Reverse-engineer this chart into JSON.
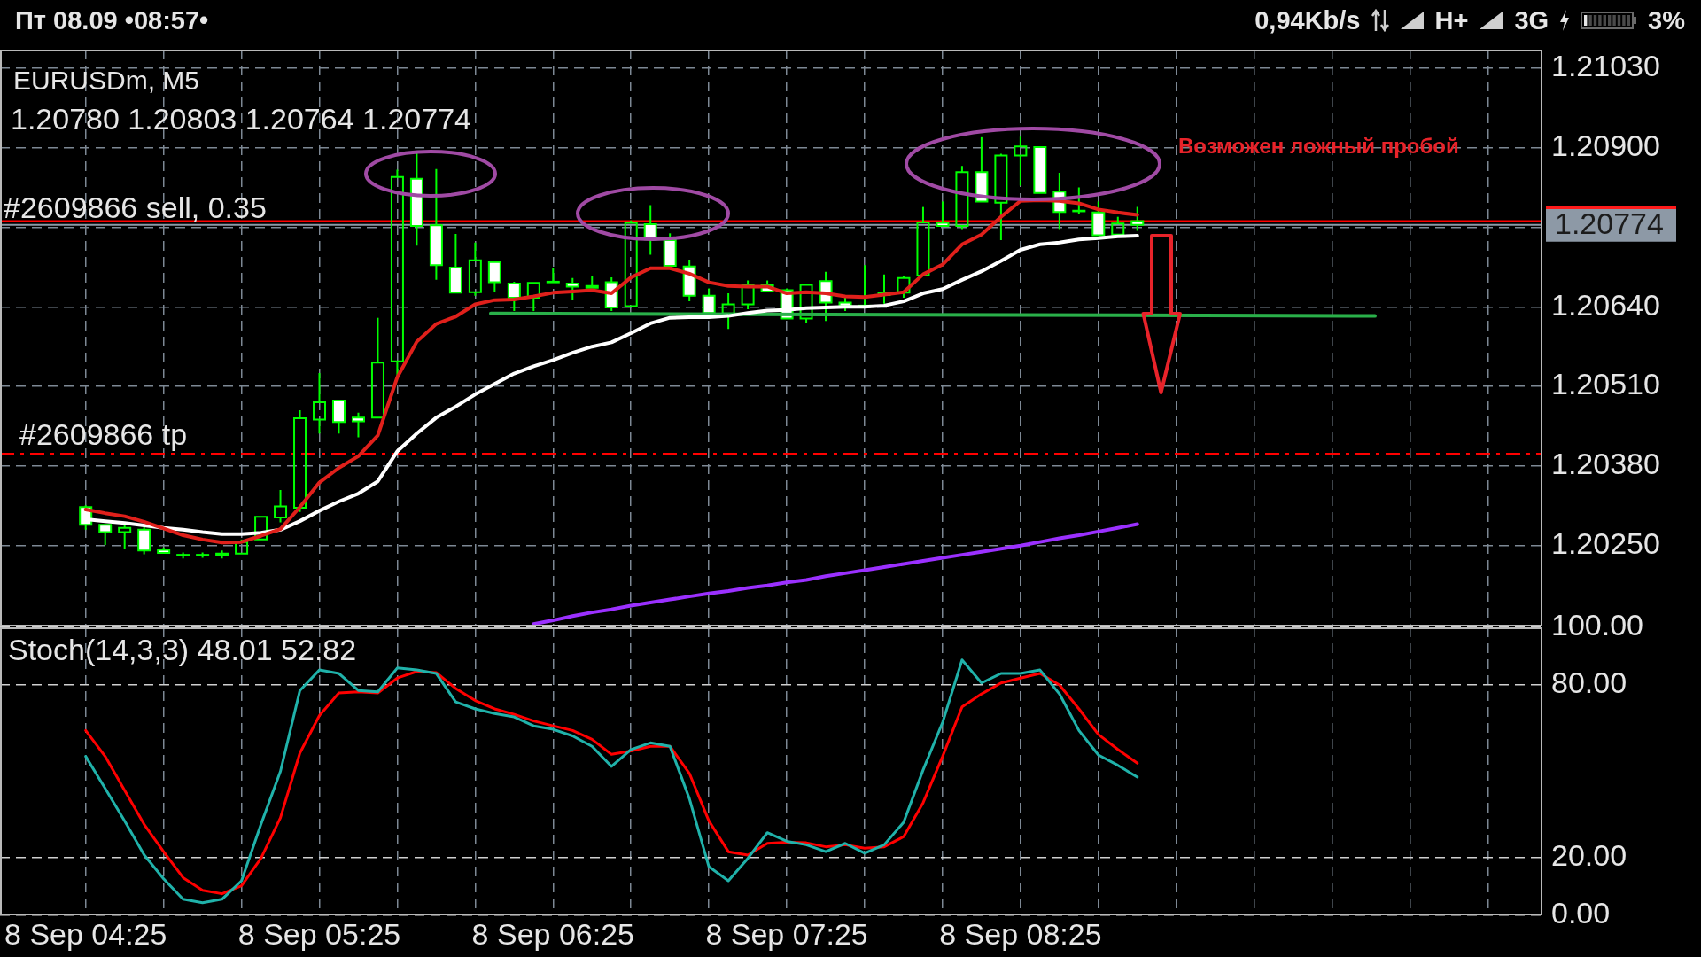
{
  "chart_data": [
    {
      "type": "candlestick",
      "title": "EURUSDm, M5",
      "subtitle": "1.20780 1.20803 1.20764 1.20774",
      "x": [
        "--09-08T04:25",
        "--09-08T04:30",
        "--09-08T04:35",
        "--09-08T04:40",
        "--09-08T04:45",
        "--09-08T04:50",
        "--09-08T04:55",
        "--09-08T05:00",
        "--09-08T05:05",
        "--09-08T05:10",
        "--09-08T05:15",
        "--09-08T05:20",
        "--09-08T05:25",
        "--09-08T05:30",
        "--09-08T05:35",
        "--09-08T05:40",
        "--09-08T05:45",
        "--09-08T05:50",
        "--09-08T05:55",
        "--09-08T06:00",
        "--09-08T06:05",
        "--09-08T06:10",
        "--09-08T06:15",
        "--09-08T06:20",
        "--09-08T06:25",
        "--09-08T06:30",
        "--09-08T06:35",
        "--09-08T06:40",
        "--09-08T06:45",
        "--09-08T06:50",
        "--09-08T06:55",
        "--09-08T07:00",
        "--09-08T07:05",
        "--09-08T07:10",
        "--09-08T07:15",
        "--09-08T07:20",
        "--09-08T07:25",
        "--09-08T07:30",
        "--09-08T07:35",
        "--09-08T07:40",
        "--09-08T07:45",
        "--09-08T07:50",
        "--09-08T07:55",
        "--09-08T08:00",
        "--09-08T08:05",
        "--09-08T08:10",
        "--09-08T08:15",
        "--09-08T08:20",
        "--09-08T08:25",
        "--09-08T08:30",
        "--09-08T08:35",
        "--09-08T08:40",
        "--09-08T08:45",
        "--09-08T08:50",
        "--09-08T08:55"
      ],
      "ohlc": [
        [
          1.20313,
          1.20316,
          1.20276,
          1.20284
        ],
        [
          1.20284,
          1.20286,
          1.20251,
          1.20272
        ],
        [
          1.20272,
          1.20283,
          1.20245,
          1.20279
        ],
        [
          1.20276,
          1.2028,
          1.20236,
          1.20242
        ],
        [
          1.20243,
          1.20247,
          1.20237,
          1.20238
        ],
        [
          1.20235,
          1.20239,
          1.20229,
          1.20234
        ],
        [
          1.20234,
          1.20239,
          1.2023,
          1.20235
        ],
        [
          1.20234,
          1.20242,
          1.20229,
          1.20237
        ],
        [
          1.20237,
          1.2026,
          1.20237,
          1.20256
        ],
        [
          1.2026,
          1.20298,
          1.2026,
          1.20297
        ],
        [
          1.20296,
          1.20341,
          1.20288,
          1.20314
        ],
        [
          1.20312,
          1.20471,
          1.20305,
          1.20458
        ],
        [
          1.20456,
          1.20532,
          1.20433,
          1.20484
        ],
        [
          1.20487,
          1.20488,
          1.20433,
          1.20452
        ],
        [
          1.20459,
          1.20467,
          1.20427,
          1.20453
        ],
        [
          1.20459,
          1.20622,
          1.20459,
          1.20549
        ],
        [
          1.20551,
          1.20864,
          1.20525,
          1.20852
        ],
        [
          1.20849,
          1.20891,
          1.2074,
          1.20772
        ],
        [
          1.20773,
          1.20865,
          1.20684,
          1.20708
        ],
        [
          1.20704,
          1.20759,
          1.20662,
          1.20663
        ],
        [
          1.20664,
          1.20745,
          1.20658,
          1.20716
        ],
        [
          1.20713,
          1.20714,
          1.20665,
          1.2068
        ],
        [
          1.20678,
          1.20681,
          1.20633,
          1.20655
        ],
        [
          1.20655,
          1.2068,
          1.20633,
          1.20679
        ],
        [
          1.2068,
          1.20704,
          1.20679,
          1.20681
        ],
        [
          1.20678,
          1.20687,
          1.20651,
          1.20673
        ],
        [
          1.20671,
          1.2069,
          1.20671,
          1.20674
        ],
        [
          1.2068,
          1.20688,
          1.20633,
          1.20639
        ],
        [
          1.20641,
          1.20781,
          1.2064,
          1.20777
        ],
        [
          1.20775,
          1.20806,
          1.20725,
          1.2075
        ],
        [
          1.20749,
          1.2076,
          1.20705,
          1.20707
        ],
        [
          1.20706,
          1.20717,
          1.20649,
          1.20658
        ],
        [
          1.20658,
          1.2067,
          1.20629,
          1.2063
        ],
        [
          1.20629,
          1.20662,
          1.20604,
          1.20644
        ],
        [
          1.20644,
          1.20683,
          1.20636,
          1.20676
        ],
        [
          1.20675,
          1.20683,
          1.20664,
          1.20665
        ],
        [
          1.20667,
          1.2067,
          1.20621,
          1.20621
        ],
        [
          1.20621,
          1.20676,
          1.20613,
          1.20676
        ],
        [
          1.20682,
          1.20697,
          1.20617,
          1.20647
        ],
        [
          1.20647,
          1.20655,
          1.20633,
          1.20641
        ],
        [
          1.20641,
          1.20708,
          1.20638,
          1.20642
        ],
        [
          1.20659,
          1.20693,
          1.20645,
          1.20663
        ],
        [
          1.20663,
          1.2069,
          1.20655,
          1.20687
        ],
        [
          1.20691,
          1.20803,
          1.20691,
          1.20778
        ],
        [
          1.20777,
          1.20812,
          1.20771,
          1.20772
        ],
        [
          1.20772,
          1.2087,
          1.20767,
          1.2086
        ],
        [
          1.2086,
          1.20917,
          1.20812,
          1.20812
        ],
        [
          1.2081,
          1.2089,
          1.20749,
          1.20887
        ],
        [
          1.20887,
          1.20918,
          1.20838,
          1.20902
        ],
        [
          1.20901,
          1.20902,
          1.20824,
          1.20826
        ],
        [
          1.20828,
          1.20859,
          1.20767,
          1.20795
        ],
        [
          1.20797,
          1.20835,
          1.20791,
          1.20796
        ],
        [
          1.20794,
          1.20812,
          1.20757,
          1.20757
        ],
        [
          1.20758,
          1.20787,
          1.20758,
          1.20776
        ],
        [
          1.2078,
          1.20803,
          1.20764,
          1.20774
        ]
      ],
      "color": "#00ff00",
      "colors": [
        "#ffffff",
        "#ffffff",
        "#00ff00",
        "#ffffff",
        "#ffffff",
        "#ffffff",
        "#00ff00",
        "#00ff00",
        "#00ff00",
        "#00ff00",
        "#00ff00",
        "#00ff00",
        "#00ff00",
        "#ffffff",
        "#ffffff",
        "#00ff00",
        "#00ff00",
        "#ffffff",
        "#ffffff",
        "#ffffff",
        "#00ff00",
        "#ffffff",
        "#ffffff",
        "#00ff00",
        "#00ff00",
        "#ffffff",
        "#00ff00",
        "#ffffff",
        "#00ff00",
        "#ffffff",
        "#ffffff",
        "#ffffff",
        "#ffffff",
        "#00ff00",
        "#00ff00",
        "#ffffff",
        "#ffffff",
        "#00ff00",
        "#ffffff",
        "#ffffff",
        "#00ff00",
        "#00ff00",
        "#00ff00",
        "#00ff00",
        "#ffffff",
        "#00ff00",
        "#ffffff",
        "#00ff00",
        "#00ff00",
        "#ffffff",
        "#ffffff",
        "#ffffff",
        "#ffffff",
        "#00ff00",
        "#ffffff"
      ],
      "series": [
        {
          "type": "line",
          "color": "#e0201b",
          "values": [
            1.20309,
            1.20303,
            1.20298,
            1.20289,
            1.20278,
            1.20267,
            1.2026,
            1.20255,
            1.20256,
            1.20266,
            1.20277,
            1.20313,
            1.20353,
            1.20377,
            1.20396,
            1.2043,
            1.20525,
            1.20583,
            1.20612,
            1.20624,
            1.20644,
            1.20651,
            1.20652,
            1.20657,
            1.20663,
            1.20665,
            1.20667,
            1.20662,
            1.20688,
            1.20703,
            1.20703,
            1.20694,
            1.2068,
            1.20674,
            1.20673,
            1.20673,
            1.20662,
            1.20664,
            1.20662,
            1.20657,
            1.20656,
            1.2066,
            1.20664,
            1.20693,
            1.20709,
            1.20742,
            1.20758,
            1.20787,
            1.20813,
            1.20814,
            1.20813,
            1.20809,
            1.20799,
            1.20794,
            1.2079
          ]
        },
        {
          "type": "line",
          "color": "#ffffff",
          "values": [
            1.20293,
            1.2029,
            1.20287,
            1.20283,
            1.20279,
            1.20276,
            1.20272,
            1.20269,
            1.20269,
            1.20271,
            1.20276,
            1.2029,
            1.20307,
            1.20322,
            1.20335,
            1.20355,
            1.20404,
            1.20433,
            1.20459,
            1.20477,
            1.20497,
            1.20514,
            1.20531,
            1.20543,
            1.20553,
            1.20565,
            1.20575,
            1.20582,
            1.20597,
            1.20613,
            1.20622,
            1.20623,
            1.20623,
            1.20625,
            1.2063,
            1.20634,
            1.20635,
            1.20638,
            1.20639,
            1.2064,
            1.2064,
            1.20642,
            1.20649,
            1.20662,
            1.20669,
            1.20684,
            1.20698,
            1.20715,
            1.20733,
            1.20742,
            1.20745,
            1.2075,
            1.20752,
            1.20755,
            1.20756
          ]
        },
        {
          "type": "line",
          "color": "#9b30ff",
          "values": [
            null,
            null,
            null,
            null,
            null,
            null,
            null,
            null,
            null,
            null,
            null,
            null,
            null,
            null,
            null,
            null,
            null,
            null,
            null,
            null,
            null,
            null,
            null,
            1.20122,
            1.20128,
            1.20135,
            1.20141,
            1.20146,
            1.20152,
            1.20157,
            1.20162,
            1.20167,
            1.20172,
            1.20176,
            1.20181,
            1.20185,
            1.2019,
            1.20194,
            1.202,
            1.20205,
            1.2021,
            1.20215,
            1.2022,
            1.20225,
            1.2023,
            1.20235,
            1.2024,
            1.20245,
            1.2025,
            1.20256,
            1.20262,
            1.20267,
            1.20273,
            1.20279,
            1.20285
          ]
        },
        {
          "type": "line",
          "color": "#2ab04a",
          "x": [
            "--09-08T06:09",
            "--09-08T09:56"
          ],
          "values": [
            1.20629,
            1.20625
          ]
        }
      ],
      "xlim": [
        "--09-08T04:03",
        "--09-08T10:39"
      ],
      "xticks": [
        {
          "value": "--09-08T04:25",
          "label": null
        },
        {
          "value": "--09-08T04:45",
          "label": null
        },
        {
          "value": "--09-08T05:05",
          "label": null
        },
        {
          "value": "--09-08T05:25",
          "label": null
        },
        {
          "value": "--09-08T05:45",
          "label": null
        },
        {
          "value": "--09-08T06:05",
          "label": null
        },
        {
          "value": "--09-08T06:25",
          "label": null
        },
        {
          "value": "--09-08T06:45",
          "label": null
        },
        {
          "value": "--09-08T07:05",
          "label": null
        },
        {
          "value": "--09-08T07:25",
          "label": null
        },
        {
          "value": "--09-08T07:45",
          "label": null
        },
        {
          "value": "--09-08T08:05",
          "label": null
        },
        {
          "value": "--09-08T08:25",
          "label": null
        },
        {
          "value": "--09-08T08:45",
          "label": null
        },
        {
          "value": "--09-08T09:05",
          "label": null
        },
        {
          "value": "--09-08T09:25",
          "label": null
        },
        {
          "value": "--09-08T09:45",
          "label": null
        },
        {
          "value": "--09-08T10:05",
          "label": null
        },
        {
          "value": "--09-08T10:25",
          "label": null
        }
      ],
      "ylim": [
        1.20118,
        1.2106
      ],
      "yticks": [
        {
          "value": 1.2025,
          "label": "1.20250"
        },
        {
          "value": 1.2038,
          "label": "1.20380"
        },
        {
          "value": 1.2051,
          "label": "1.20510"
        },
        {
          "value": 1.2064,
          "label": "1.20640"
        },
        {
          "value": 1.2077,
          "label": null
        },
        {
          "value": 1.209,
          "label": "1.20900"
        },
        {
          "value": 1.2103,
          "label": "1.21030"
        }
      ],
      "ref_lines": [
        {
          "axis": "y",
          "value": 1.2078,
          "label": "#2609866 sell, 0.35",
          "color": "#ff0000"
        },
        {
          "axis": "y",
          "value": 1.20774,
          "label": "1.20774",
          "color": "#8d99a6"
        },
        {
          "axis": "y",
          "value": 1.204,
          "label": "#2609866 tp",
          "color": "#ff0000",
          "line_style": "dashed"
        }
      ],
      "annotations": [
        "Возможен ложный пробой",
        "Пт 08.09 •08:57•",
        "0,94Kb/s",
        "H+",
        "3G",
        "3%"
      ],
      "grid": true,
      "tick_labels": "y"
    },
    {
      "type": "line",
      "title": "Stoch(14,3,3) 48.01 52.82",
      "x": [
        "--09-08T04:25",
        "--09-08T04:30",
        "--09-08T04:35",
        "--09-08T04:40",
        "--09-08T04:45",
        "--09-08T04:50",
        "--09-08T04:55",
        "--09-08T05:00",
        "--09-08T05:05",
        "--09-08T05:10",
        "--09-08T05:15",
        "--09-08T05:20",
        "--09-08T05:25",
        "--09-08T05:30",
        "--09-08T05:35",
        "--09-08T05:40",
        "--09-08T05:45",
        "--09-08T05:50",
        "--09-08T05:55",
        "--09-08T06:00",
        "--09-08T06:05",
        "--09-08T06:10",
        "--09-08T06:15",
        "--09-08T06:20",
        "--09-08T06:25",
        "--09-08T06:30",
        "--09-08T06:35",
        "--09-08T06:40",
        "--09-08T06:45",
        "--09-08T06:50",
        "--09-08T06:55",
        "--09-08T07:00",
        "--09-08T07:05",
        "--09-08T07:10",
        "--09-08T07:15",
        "--09-08T07:20",
        "--09-08T07:25",
        "--09-08T07:30",
        "--09-08T07:35",
        "--09-08T07:40",
        "--09-08T07:45",
        "--09-08T07:50",
        "--09-08T07:55",
        "--09-08T08:00",
        "--09-08T08:05",
        "--09-08T08:10",
        "--09-08T08:15",
        "--09-08T08:20",
        "--09-08T08:25",
        "--09-08T08:30",
        "--09-08T08:35",
        "--09-08T08:40",
        "--09-08T08:45",
        "--09-08T08:50",
        "--09-08T08:55"
      ],
      "series": [
        {
          "color": "#20b2aa",
          "values": [
            55.2,
            44.1,
            32.8,
            21.0,
            12.7,
            5.6,
            4.4,
            5.6,
            12.0,
            31.6,
            50.0,
            78.1,
            85.2,
            84.0,
            78.1,
            77.6,
            85.9,
            85.2,
            84.0,
            74.1,
            71.7,
            70.1,
            68.9,
            65.8,
            64.6,
            62.3,
            58.7,
            51.7,
            57.6,
            59.9,
            58.7,
            40.5,
            16.9,
            12.0,
            19.8,
            28.7,
            25.7,
            24.5,
            22.1,
            25.0,
            21.6,
            24.5,
            32.3,
            50.5,
            67.0,
            88.7,
            80.7,
            84.0,
            84.0,
            85.2,
            76.9,
            64.2,
            55.7,
            52.1,
            48.01
          ]
        },
        {
          "color": "#ff0000",
          "values": [
            64.2,
            55.2,
            43.4,
            31.6,
            22.1,
            13.1,
            8.7,
            7.5,
            10.3,
            19.8,
            33.9,
            56.4,
            69.4,
            77.2,
            77.6,
            77.2,
            82.4,
            84.7,
            84.3,
            78.8,
            74.6,
            71.7,
            69.8,
            67.5,
            65.8,
            64.2,
            61.1,
            55.9,
            57.1,
            58.7,
            58.7,
            49.3,
            32.8,
            22.1,
            20.9,
            25.0,
            25.4,
            25.2,
            23.8,
            24.5,
            23.3,
            23.8,
            27.3,
            39.1,
            55.2,
            72.4,
            76.9,
            80.7,
            82.4,
            84.0,
            80.0,
            71.7,
            62.8,
            57.6,
            52.82
          ]
        }
      ],
      "xlim": [
        "--09-08T04:03",
        "--09-08T10:39"
      ],
      "xticks": [
        {
          "value": "--09-08T04:25",
          "label": "8 Sep 04:25"
        },
        {
          "value": "--09-08T04:45",
          "label": null
        },
        {
          "value": "--09-08T05:05",
          "label": null
        },
        {
          "value": "--09-08T05:25",
          "label": "8 Sep 05:25"
        },
        {
          "value": "--09-08T05:45",
          "label": null
        },
        {
          "value": "--09-08T06:05",
          "label": null
        },
        {
          "value": "--09-08T06:25",
          "label": "8 Sep 06:25"
        },
        {
          "value": "--09-08T06:45",
          "label": null
        },
        {
          "value": "--09-08T07:05",
          "label": null
        },
        {
          "value": "--09-08T07:25",
          "label": "8 Sep 07:25"
        },
        {
          "value": "--09-08T07:45",
          "label": null
        },
        {
          "value": "--09-08T08:05",
          "label": null
        },
        {
          "value": "--09-08T08:25",
          "label": "8 Sep 08:25"
        },
        {
          "value": "--09-08T08:45",
          "label": null
        },
        {
          "value": "--09-08T09:05",
          "label": null
        },
        {
          "value": "--09-08T09:25",
          "label": null
        },
        {
          "value": "--09-08T09:45",
          "label": null
        },
        {
          "value": "--09-08T10:05",
          "label": null
        },
        {
          "value": "--09-08T10:25",
          "label": null
        }
      ],
      "ylim": [
        0,
        100
      ],
      "yticks": [
        {
          "value": 0,
          "label": "0.00"
        },
        {
          "value": 20,
          "label": "20.00"
        },
        {
          "value": 80,
          "label": "80.00"
        },
        {
          "value": 100,
          "label": "100.00"
        }
      ],
      "grid": true
    }
  ]
}
